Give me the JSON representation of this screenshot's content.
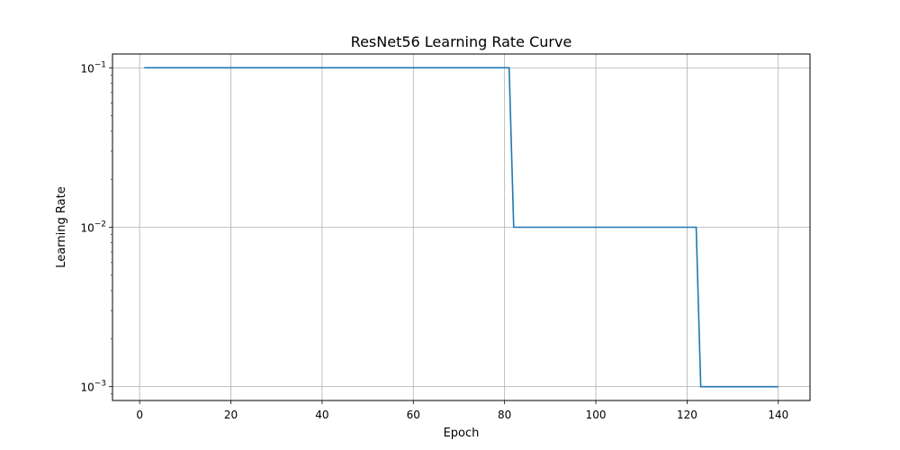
{
  "chart_data": {
    "type": "line",
    "title": "ResNet56 Learning Rate Curve",
    "xlabel": "Epoch",
    "ylabel": "Learning Rate",
    "y_scale": "log",
    "grid": true,
    "legend": "none",
    "xlim": [
      -5.95,
      146.95
    ],
    "ylim": [
      0.000819,
      0.1221
    ],
    "x_ticks": [
      0,
      20,
      40,
      60,
      80,
      100,
      120,
      140
    ],
    "y_ticks": [
      {
        "value": 0.001,
        "base": "10",
        "exponent": "−3"
      },
      {
        "value": 0.01,
        "base": "10",
        "exponent": "−2"
      },
      {
        "value": 0.1,
        "base": "10",
        "exponent": "−1"
      }
    ],
    "line_color": "#1f77b4",
    "grid_color": "#b0b0b0",
    "series": [
      {
        "x": [
          1,
          81,
          82,
          122,
          123,
          140
        ],
        "y": [
          0.1,
          0.1,
          0.01,
          0.01,
          0.001,
          0.001
        ]
      }
    ]
  }
}
